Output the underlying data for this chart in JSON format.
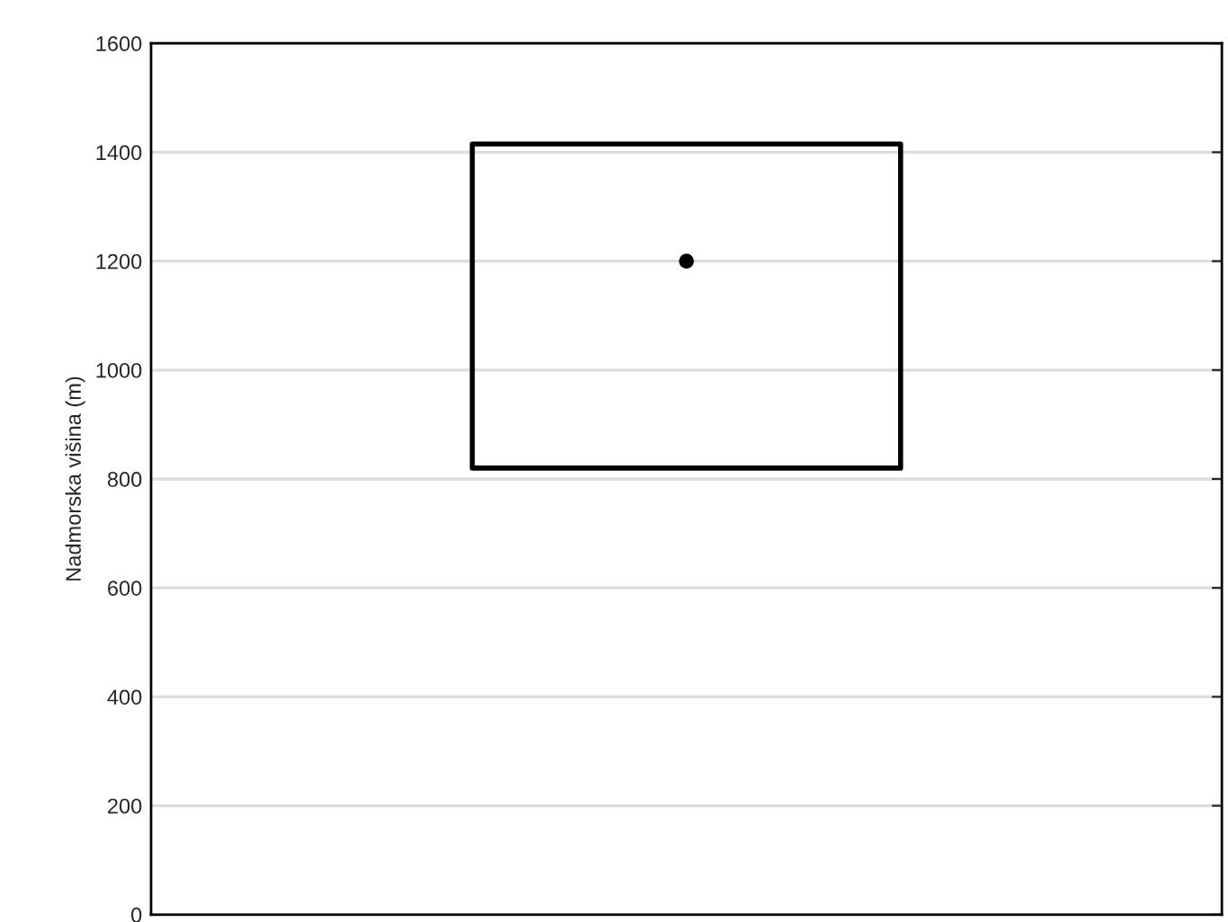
{
  "chart_data": {
    "type": "box",
    "ylabel": "Nadmorska višina (m)",
    "categories": [
      null
    ],
    "boxes": [
      {
        "low": 820,
        "q1": 820,
        "median": 1200,
        "q3": 1415,
        "high": 1415
      }
    ],
    "ylim": [
      0,
      1600
    ],
    "yticks": [
      0,
      200,
      400,
      600,
      800,
      1000,
      1200,
      1400,
      1600
    ],
    "grid": "y",
    "marker": "circle"
  }
}
